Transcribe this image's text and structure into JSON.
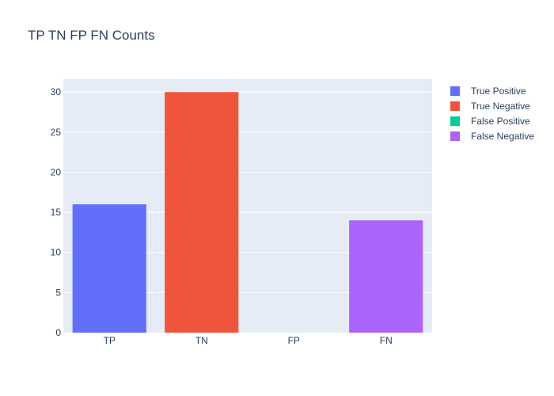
{
  "chart_data": {
    "type": "bar",
    "title": "TP TN FP FN Counts",
    "categories": [
      "TP",
      "TN",
      "FP",
      "FN"
    ],
    "series": [
      {
        "name": "True Positive",
        "category": "TP",
        "value": 16,
        "color": "#636efa"
      },
      {
        "name": "True Negative",
        "category": "TN",
        "value": 30,
        "color": "#ef553b"
      },
      {
        "name": "False Positive",
        "category": "FP",
        "value": 0,
        "color": "#00cc96"
      },
      {
        "name": "False Negative",
        "category": "FN",
        "value": 14,
        "color": "#ab63fa"
      }
    ],
    "ylim": [
      0,
      31.6
    ],
    "yticks": [
      0,
      5,
      10,
      15,
      20,
      25,
      30
    ],
    "grid": true,
    "legend_position": "top-right",
    "plot_background": "#e5ecf6"
  }
}
